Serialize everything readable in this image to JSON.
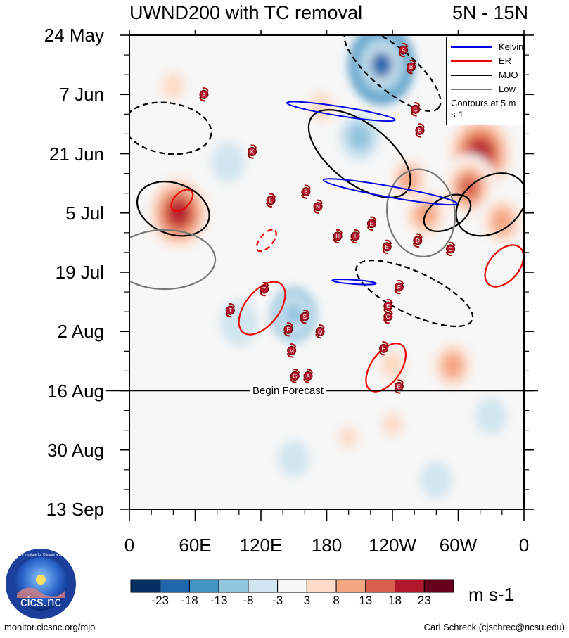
{
  "chart_data": {
    "type": "heatmap",
    "title": "UWND200 with TC removal",
    "subtitle": "5N - 15N",
    "x_axis": {
      "labels": [
        "0",
        "60E",
        "120E",
        "180",
        "120W",
        "60W",
        "0"
      ],
      "range_deg_east": [
        0,
        360
      ],
      "tick_values_deg_east": [
        0,
        60,
        120,
        180,
        240,
        300,
        360
      ]
    },
    "y_axis": {
      "labels": [
        "24 May",
        "7 Jun",
        "21 Jun",
        "5 Jul",
        "19 Jul",
        "2 Aug",
        "16 Aug",
        "30 Aug",
        "13 Sep"
      ],
      "range_days": [
        0,
        112
      ],
      "tick_days": [
        0,
        14,
        28,
        42,
        56,
        70,
        84,
        98,
        112
      ],
      "direction": "time increases downward"
    },
    "forecast": {
      "label": "Begin Forecast",
      "day": 84
    },
    "colorbar": {
      "unit": "m s-1",
      "levels": [
        -23,
        -18,
        -13,
        -8,
        -3,
        3,
        8,
        13,
        18,
        23
      ],
      "colors": [
        "#053061",
        "#2166ac",
        "#4393c3",
        "#92c5de",
        "#d1e5f0",
        "#f7f7f7",
        "#fddbc7",
        "#f4a582",
        "#d6604d",
        "#b2182b",
        "#67001f"
      ]
    },
    "legend": {
      "items": [
        {
          "label": "Kelvin",
          "color": "#0000ee"
        },
        {
          "label": "ER",
          "color": "#ee0000"
        },
        {
          "label": "MJO",
          "color": "#000000"
        },
        {
          "label": "Low",
          "color": "#777777"
        }
      ],
      "note": "Contours at 5 m s-1"
    },
    "anomaly_blobs": [
      {
        "lon": 230,
        "day": 7,
        "value": -18
      },
      {
        "lon": 45,
        "day": 42,
        "value": 20
      },
      {
        "lon": 320,
        "day": 28,
        "value": 22
      },
      {
        "lon": 310,
        "day": 36,
        "value": 14
      },
      {
        "lon": 340,
        "day": 44,
        "value": 12
      },
      {
        "lon": 270,
        "day": 42,
        "value": 13
      },
      {
        "lon": 255,
        "day": 34,
        "value": 10
      },
      {
        "lon": 150,
        "day": 66,
        "value": -10
      },
      {
        "lon": 100,
        "day": 68,
        "value": -7
      },
      {
        "lon": 295,
        "day": 78,
        "value": 12
      },
      {
        "lon": 240,
        "day": 78,
        "value": 8
      },
      {
        "lon": 40,
        "day": 12,
        "value": 7
      },
      {
        "lon": 175,
        "day": 17,
        "value": 8
      },
      {
        "lon": 210,
        "day": 24,
        "value": -8
      },
      {
        "lon": 90,
        "day": 30,
        "value": -5
      },
      {
        "lon": 330,
        "day": 90,
        "value": -4
      },
      {
        "lon": 200,
        "day": 95,
        "value": 4
      },
      {
        "lon": 50,
        "day": 98,
        "value": 3
      },
      {
        "lon": 240,
        "day": 92,
        "value": 5
      },
      {
        "lon": 150,
        "day": 100,
        "value": -4
      },
      {
        "lon": 280,
        "day": 105,
        "value": -4
      }
    ],
    "contours": [
      {
        "kind": "MJO",
        "sign": "positive",
        "lon": 40,
        "day": 41,
        "rx": 34,
        "ry": 6,
        "angle": 20
      },
      {
        "kind": "MJO",
        "sign": "positive",
        "lon": 210,
        "day": 28,
        "rx": 55,
        "ry": 7,
        "angle": 38
      },
      {
        "kind": "MJO",
        "sign": "positive",
        "lon": 330,
        "day": 40,
        "rx": 25,
        "ry": 9,
        "angle": 55
      },
      {
        "kind": "MJO",
        "sign": "positive",
        "lon": 290,
        "day": 42,
        "rx": 14,
        "ry": 6,
        "angle": 60
      },
      {
        "kind": "MJO",
        "sign": "negative",
        "lon": 35,
        "day": 22,
        "rx": 40,
        "ry": 6,
        "angle": 8
      },
      {
        "kind": "MJO",
        "sign": "negative",
        "lon": 240,
        "day": 8,
        "rx": 55,
        "ry": 5,
        "angle": 40
      },
      {
        "kind": "MJO",
        "sign": "negative",
        "lon": 260,
        "day": 61,
        "rx": 58,
        "ry": 5,
        "angle": 25
      },
      {
        "kind": "Low",
        "sign": "positive",
        "lon": 32,
        "day": 53,
        "rx": 27,
        "ry": 12,
        "angle": 90
      },
      {
        "kind": "Low",
        "sign": "positive",
        "lon": 266,
        "day": 42,
        "rx": 40,
        "ry": 8,
        "angle": 82
      },
      {
        "kind": "Kelvin",
        "sign": "positive",
        "lon": 193,
        "day": 18,
        "rx": 50,
        "ry": 1.1,
        "angle": 9
      },
      {
        "kind": "Kelvin",
        "sign": "positive",
        "lon": 238,
        "day": 37,
        "rx": 62,
        "ry": 1.3,
        "angle": 10
      },
      {
        "kind": "Kelvin",
        "sign": "positive",
        "lon": 205,
        "day": 58.3,
        "rx": 20,
        "ry": 0.5,
        "angle": 4
      },
      {
        "kind": "ER",
        "sign": "positive",
        "lon": 48,
        "day": 39,
        "rx": 12,
        "ry": 1.8,
        "angle": -45
      },
      {
        "kind": "ER",
        "sign": "positive",
        "lon": 121,
        "day": 64.5,
        "rx": 28,
        "ry": 4,
        "angle": -52
      },
      {
        "kind": "ER",
        "sign": "positive",
        "lon": 234,
        "day": 78.5,
        "rx": 25,
        "ry": 3.5,
        "angle": -55
      },
      {
        "kind": "ER",
        "sign": "positive",
        "lon": 342,
        "day": 54.5,
        "rx": 22,
        "ry": 3.5,
        "angle": -50
      },
      {
        "kind": "ER",
        "sign": "negative",
        "lon": 125,
        "day": 48.5,
        "rx": 12,
        "ry": 1.5,
        "angle": -50
      }
    ],
    "tc_markers": [
      {
        "letter": "A",
        "lon": 250,
        "day": 3.5
      },
      {
        "letter": "B",
        "lon": 257,
        "day": 7.5
      },
      {
        "letter": "A",
        "lon": 68,
        "day": 14
      },
      {
        "letter": "C",
        "lon": 261,
        "day": 17.5
      },
      {
        "letter": "B",
        "lon": 265,
        "day": 22.5
      },
      {
        "letter": "K",
        "lon": 112,
        "day": 27.5
      },
      {
        "letter": "B",
        "lon": 161,
        "day": 37
      },
      {
        "letter": "L",
        "lon": 129,
        "day": 39
      },
      {
        "letter": "N",
        "lon": 172,
        "day": 40.5
      },
      {
        "letter": "E",
        "lon": 221,
        "day": 44.5
      },
      {
        "letter": "H",
        "lon": 190,
        "day": 47.5
      },
      {
        "letter": "I",
        "lon": 206,
        "day": 47.5
      },
      {
        "letter": "D",
        "lon": 263,
        "day": 48.5
      },
      {
        "letter": "E",
        "lon": 235,
        "day": 50
      },
      {
        "letter": "C",
        "lon": 293,
        "day": 50.5
      },
      {
        "letter": "T",
        "lon": 123,
        "day": 60
      },
      {
        "letter": "F",
        "lon": 246,
        "day": 59.5
      },
      {
        "letter": "T",
        "lon": 92,
        "day": 65
      },
      {
        "letter": "E",
        "lon": 236,
        "day": 64
      },
      {
        "letter": "G",
        "lon": 236,
        "day": 66.5
      },
      {
        "letter": "S",
        "lon": 160,
        "day": 66.5
      },
      {
        "letter": "F",
        "lon": 145,
        "day": 69.5
      },
      {
        "letter": "Q",
        "lon": 174,
        "day": 70
      },
      {
        "letter": "H",
        "lon": 232,
        "day": 74
      },
      {
        "letter": "M",
        "lon": 148,
        "day": 74.5
      },
      {
        "letter": "G",
        "lon": 151,
        "day": 80.5
      },
      {
        "letter": "A",
        "lon": 163,
        "day": 80.5
      },
      {
        "letter": "E",
        "lon": 246,
        "day": 83
      }
    ]
  },
  "footer": {
    "left": "monitor.cicsnc.org/mjo",
    "right": "Carl Schreck (cjschrec@ncsu.edu)"
  },
  "logo": {
    "text": "cics.nc",
    "ring_text": "Cooperative Institute for Climate and Satellites"
  }
}
